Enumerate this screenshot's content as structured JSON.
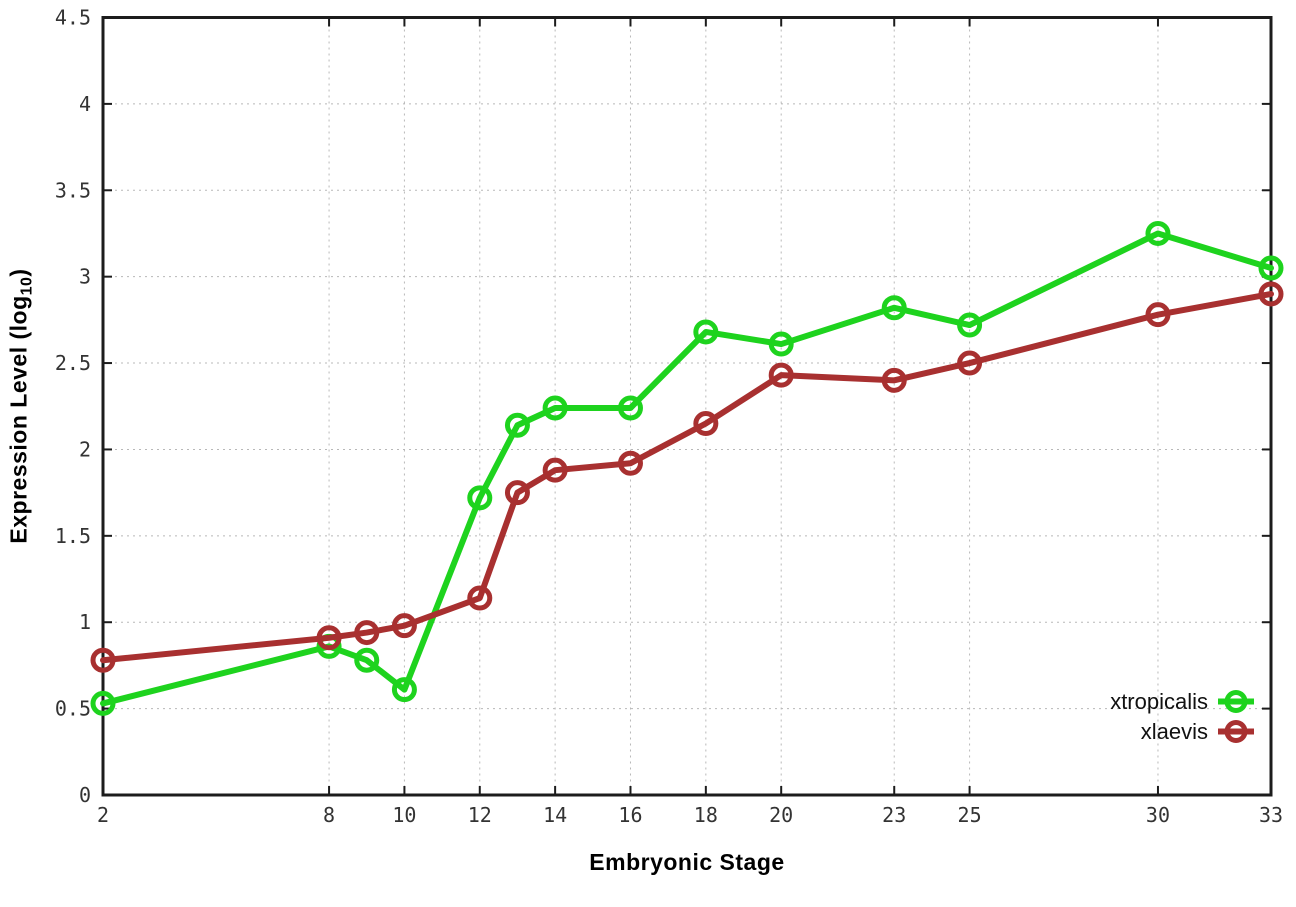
{
  "figure": {
    "background": "#ffffff",
    "border_color": "#1c1c1c",
    "grid_color": "#b8b8b8",
    "tick_label_color": "#333333"
  },
  "labels": {
    "xlabel": "Embryonic Stage",
    "ylabel_prefix": "Expression Level (log",
    "ylabel_sub": "10",
    "ylabel_suffix": ")"
  },
  "chart_data": {
    "type": "line",
    "title": "",
    "xlabel": "Embryonic Stage",
    "ylabel": "Expression Level (log10)",
    "x": [
      2,
      8,
      9,
      10,
      12,
      13,
      14,
      16,
      18,
      20,
      23,
      25,
      30,
      33
    ],
    "series": [
      {
        "name": "xtropicalis",
        "color": "#1ed31e",
        "marker": "open-circle",
        "values": [
          0.53,
          0.86,
          0.78,
          0.61,
          1.72,
          2.14,
          2.24,
          2.24,
          2.68,
          2.61,
          2.82,
          2.72,
          3.25,
          3.05
        ]
      },
      {
        "name": "xlaevis",
        "color": "#a83030",
        "marker": "open-circle",
        "values": [
          0.78,
          0.91,
          0.94,
          0.98,
          1.14,
          1.75,
          1.88,
          1.92,
          2.15,
          2.43,
          2.4,
          2.5,
          2.78,
          2.9
        ]
      }
    ],
    "xlim": [
      2,
      33
    ],
    "ylim": [
      0,
      4.5
    ],
    "x_ticks": [
      2,
      8,
      10,
      12,
      14,
      16,
      18,
      20,
      23,
      25,
      30,
      33
    ],
    "y_ticks": [
      0,
      0.5,
      1,
      1.5,
      2,
      2.5,
      3,
      3.5,
      4,
      4.5
    ],
    "grid": true,
    "grid_style": "dotted",
    "legend_position": "inside-bottom-right",
    "ticks_mirrored": true
  }
}
